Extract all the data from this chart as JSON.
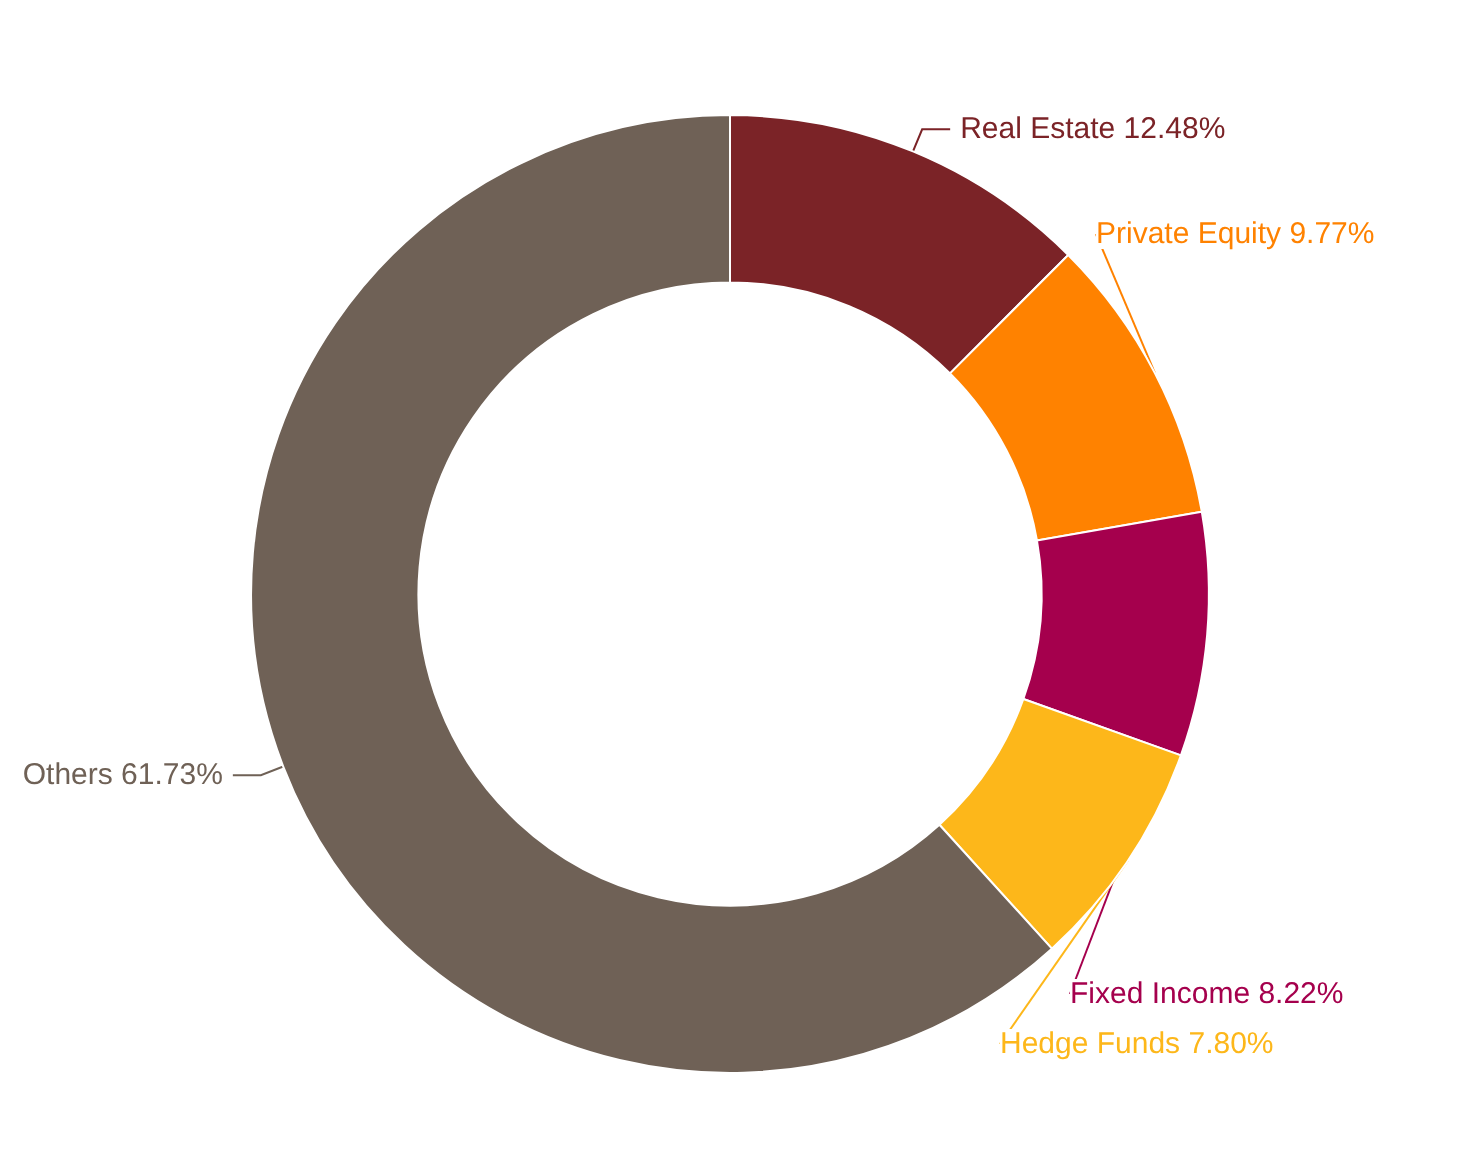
{
  "chart_data": {
    "type": "donut",
    "categories": [
      "Real Estate",
      "Private Equity",
      "Fixed Income",
      "Hedge Funds",
      "Others"
    ],
    "values": [
      12.48,
      9.77,
      8.22,
      7.8,
      61.73
    ],
    "value_labels": [
      "12.48%",
      "9.77%",
      "8.22%",
      "7.80%",
      "61.73%"
    ],
    "colors": [
      "#7b2327",
      "#ff8200",
      "#a5004d",
      "#fdb71a",
      "#6f6156"
    ],
    "legend": false
  }
}
